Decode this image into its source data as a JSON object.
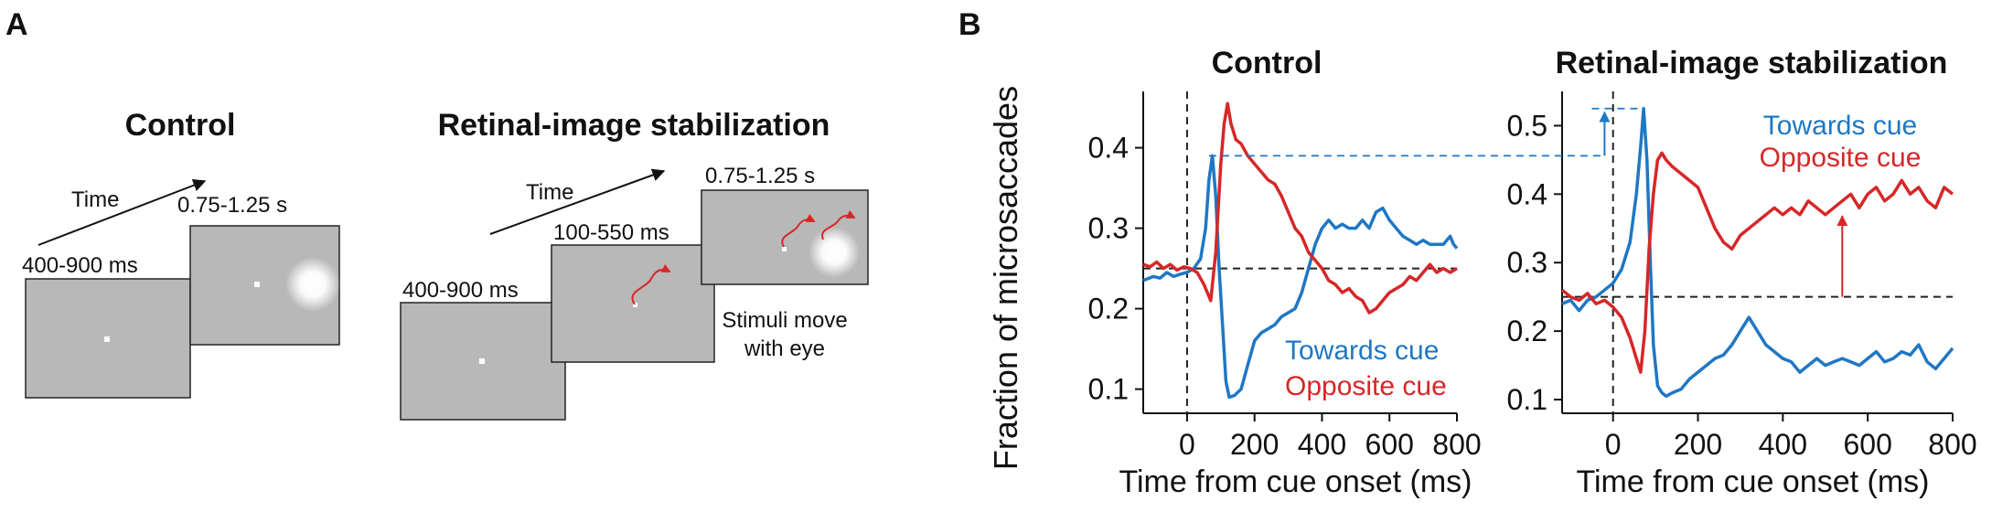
{
  "panel_labels": {
    "a": "A",
    "b": "B"
  },
  "panel_a": {
    "control": {
      "title": "Control",
      "time_label": "Time",
      "frame1_label": "400-900 ms",
      "frame2_label": "0.75-1.25 s"
    },
    "stabilization": {
      "title": "Retinal-image stabilization",
      "time_label": "Time",
      "frame1_label": "400-900 ms",
      "frame2_label": "100-550 ms",
      "frame3_label": "0.75-1.25 s",
      "note_line1": "Stimuli move",
      "note_line2": "with eye"
    }
  },
  "colors": {
    "towards": "#1f77c4",
    "opposite": "#d62728",
    "frame_fill": "#b8b8b8",
    "ref_line": "#222222"
  },
  "chart_data": [
    {
      "type": "line",
      "title": "Control",
      "xlabel": "Time from cue onset (ms)",
      "ylabel": "Fraction of microsaccades",
      "xlim": [
        -130,
        800
      ],
      "ylim": [
        0.07,
        0.47
      ],
      "xticks": [
        0,
        200,
        400,
        600,
        800
      ],
      "yticks": [
        0.1,
        0.2,
        0.3,
        0.4
      ],
      "legend": [
        "Towards cue",
        "Opposite cue"
      ],
      "legend_position": "bottom-right",
      "chance_level": 0.25,
      "cue_onset": 0,
      "series": [
        {
          "name": "Towards cue",
          "x": [
            -130,
            -100,
            -80,
            -60,
            -40,
            -20,
            0,
            20,
            40,
            55,
            65,
            75,
            85,
            95,
            105,
            115,
            125,
            140,
            160,
            180,
            200,
            220,
            240,
            260,
            280,
            300,
            320,
            340,
            360,
            380,
            400,
            420,
            440,
            460,
            480,
            500,
            520,
            540,
            560,
            580,
            600,
            620,
            640,
            660,
            680,
            700,
            720,
            740,
            760,
            780,
            790,
            800
          ],
          "values": [
            0.235,
            0.24,
            0.238,
            0.245,
            0.24,
            0.243,
            0.245,
            0.25,
            0.262,
            0.3,
            0.36,
            0.39,
            0.34,
            0.25,
            0.18,
            0.11,
            0.09,
            0.092,
            0.1,
            0.13,
            0.16,
            0.17,
            0.175,
            0.18,
            0.19,
            0.195,
            0.2,
            0.22,
            0.25,
            0.28,
            0.3,
            0.31,
            0.3,
            0.305,
            0.3,
            0.3,
            0.31,
            0.3,
            0.32,
            0.325,
            0.31,
            0.3,
            0.29,
            0.285,
            0.28,
            0.285,
            0.28,
            0.28,
            0.28,
            0.29,
            0.28,
            0.275
          ]
        },
        {
          "name": "Opposite cue",
          "x": [
            -130,
            -110,
            -90,
            -70,
            -50,
            -30,
            -10,
            10,
            30,
            50,
            70,
            85,
            100,
            110,
            120,
            130,
            145,
            160,
            180,
            200,
            220,
            240,
            260,
            280,
            300,
            320,
            340,
            360,
            380,
            400,
            420,
            440,
            460,
            480,
            500,
            520,
            540,
            560,
            580,
            600,
            620,
            640,
            660,
            680,
            700,
            720,
            740,
            760,
            780,
            800
          ],
          "values": [
            0.255,
            0.252,
            0.258,
            0.25,
            0.255,
            0.248,
            0.252,
            0.25,
            0.245,
            0.23,
            0.21,
            0.27,
            0.38,
            0.43,
            0.455,
            0.43,
            0.41,
            0.405,
            0.39,
            0.38,
            0.37,
            0.36,
            0.355,
            0.34,
            0.32,
            0.3,
            0.29,
            0.27,
            0.26,
            0.25,
            0.235,
            0.23,
            0.22,
            0.225,
            0.215,
            0.21,
            0.195,
            0.2,
            0.21,
            0.22,
            0.225,
            0.23,
            0.24,
            0.235,
            0.245,
            0.255,
            0.245,
            0.25,
            0.245,
            0.25
          ]
        }
      ]
    },
    {
      "type": "line",
      "title": "Retinal-image stabilization",
      "xlabel": "Time from cue onset (ms)",
      "ylabel": "",
      "xlim": [
        -120,
        800
      ],
      "ylim": [
        0.08,
        0.55
      ],
      "xticks": [
        0,
        200,
        400,
        600,
        800
      ],
      "yticks": [
        0.1,
        0.2,
        0.3,
        0.4,
        0.5
      ],
      "legend": [
        "Towards cue",
        "Opposite cue"
      ],
      "legend_position": "top-right",
      "chance_level": 0.25,
      "cue_onset": 0,
      "series": [
        {
          "name": "Towards cue",
          "x": [
            -120,
            -100,
            -80,
            -60,
            -40,
            -20,
            0,
            20,
            40,
            55,
            65,
            72,
            80,
            88,
            95,
            105,
            115,
            125,
            140,
            160,
            180,
            200,
            220,
            240,
            260,
            280,
            300,
            320,
            340,
            360,
            380,
            400,
            420,
            440,
            460,
            480,
            500,
            520,
            540,
            560,
            580,
            600,
            620,
            640,
            660,
            680,
            700,
            720,
            740,
            760,
            780,
            800
          ],
          "values": [
            0.24,
            0.245,
            0.23,
            0.245,
            0.25,
            0.26,
            0.27,
            0.29,
            0.33,
            0.4,
            0.47,
            0.525,
            0.45,
            0.3,
            0.18,
            0.12,
            0.11,
            0.105,
            0.11,
            0.115,
            0.13,
            0.14,
            0.15,
            0.16,
            0.165,
            0.18,
            0.2,
            0.22,
            0.2,
            0.18,
            0.17,
            0.16,
            0.155,
            0.14,
            0.15,
            0.16,
            0.15,
            0.155,
            0.16,
            0.155,
            0.15,
            0.16,
            0.17,
            0.155,
            0.16,
            0.17,
            0.165,
            0.18,
            0.155,
            0.145,
            0.16,
            0.175
          ]
        },
        {
          "name": "Opposite cue",
          "x": [
            -120,
            -100,
            -80,
            -60,
            -40,
            -20,
            0,
            20,
            40,
            55,
            65,
            75,
            85,
            95,
            105,
            115,
            125,
            140,
            160,
            180,
            200,
            220,
            240,
            260,
            280,
            300,
            320,
            340,
            360,
            380,
            400,
            420,
            440,
            460,
            480,
            500,
            520,
            540,
            560,
            580,
            600,
            620,
            640,
            660,
            680,
            700,
            720,
            740,
            760,
            780,
            800
          ],
          "values": [
            0.26,
            0.25,
            0.245,
            0.255,
            0.24,
            0.245,
            0.235,
            0.22,
            0.19,
            0.16,
            0.14,
            0.2,
            0.32,
            0.4,
            0.45,
            0.46,
            0.45,
            0.44,
            0.43,
            0.42,
            0.41,
            0.38,
            0.35,
            0.33,
            0.32,
            0.34,
            0.35,
            0.36,
            0.37,
            0.38,
            0.37,
            0.38,
            0.37,
            0.39,
            0.38,
            0.37,
            0.38,
            0.39,
            0.4,
            0.38,
            0.4,
            0.41,
            0.39,
            0.4,
            0.42,
            0.4,
            0.41,
            0.39,
            0.38,
            0.41,
            0.4
          ]
        }
      ]
    }
  ]
}
